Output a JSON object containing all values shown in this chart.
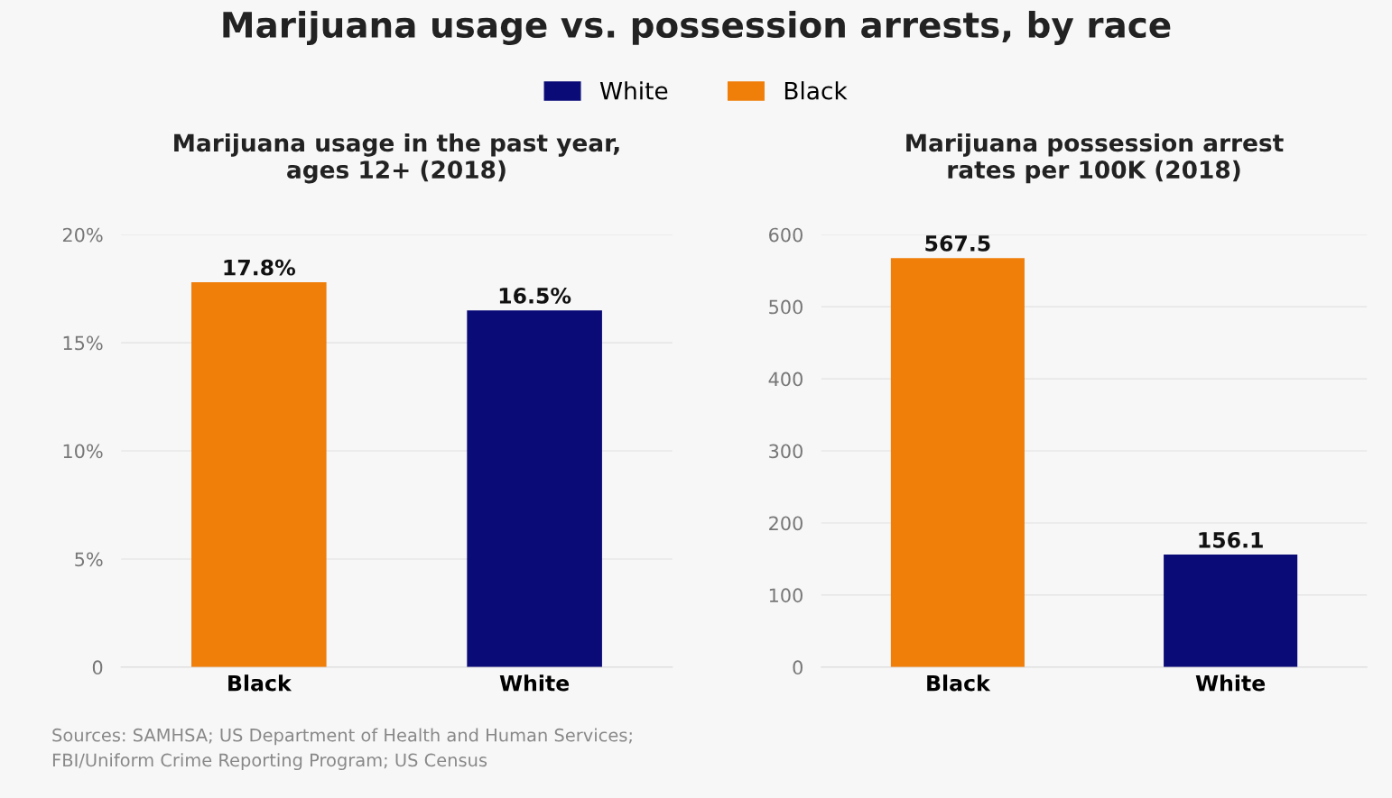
{
  "chart_data": [
    {
      "type": "bar",
      "title": "Marijuana usage vs. possession arrests, by race",
      "subtitle": "Marijuana usage in the past year,\nages 12+ (2018)",
      "categories": [
        "Black",
        "White"
      ],
      "series": [
        {
          "name": "White",
          "color": "#0b0b78",
          "values": [
            null,
            16.5
          ],
          "value_labels": [
            null,
            "16.5%"
          ]
        },
        {
          "name": "Black",
          "color": "#f07f0a",
          "values": [
            17.8,
            null
          ],
          "value_labels": [
            "17.8%",
            null
          ]
        }
      ],
      "ylim": [
        0,
        20
      ],
      "yticks": [
        0,
        {
          "value": 5,
          "label": "5%"
        },
        {
          "value": 10,
          "label": "10%"
        },
        {
          "value": 15,
          "label": "15%"
        },
        {
          "value": 20,
          "label": "20%"
        }
      ],
      "grid": "y",
      "legend": "top",
      "annotations": [
        "Sources: SAMHSA; US Department of Health and Human Services;\nFBI/Uniform Crime Reporting Program; US Census"
      ]
    },
    {
      "type": "bar",
      "subtitle": "Marijuana possession arrest\nrates per 100K (2018)",
      "categories": [
        "Black",
        "White"
      ],
      "values": [
        567.5,
        156.1
      ],
      "colors": [
        "#f07f0a",
        "#0b0b78"
      ],
      "ylim": [
        0,
        600
      ],
      "yticks": [
        0,
        100,
        200,
        300,
        400,
        500,
        600
      ],
      "grid": "y",
      "data_labels": true
    }
  ]
}
